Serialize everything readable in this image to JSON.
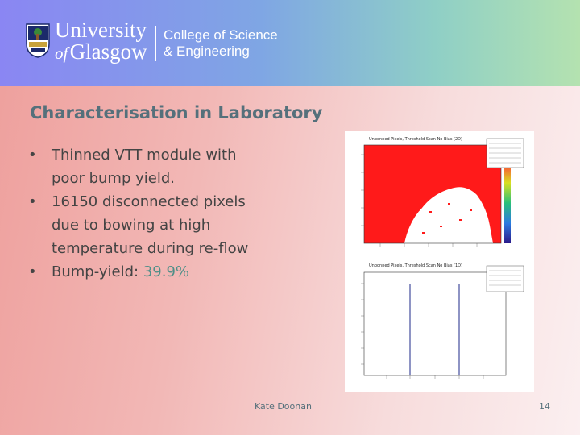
{
  "header": {
    "logo_line1": "University",
    "logo_of": "of",
    "logo_line2": "Glasgow",
    "college_line1": "College of Science",
    "college_line2": "& Engineering",
    "logo_icon": "university-crest-icon"
  },
  "slide": {
    "title": "Characterisation in Laboratory",
    "bullet_char": "•",
    "bullets": [
      "Thinned VTT module with poor bump yield.",
      "16150 disconnected pixels due to bowing at high temperature during re-flow"
    ],
    "bullet3_prefix": "Bump-yield: ",
    "bullet3_value": "39.9%"
  },
  "figure": {
    "top_title": "Unbonned Pixels, Threshold Scan No Bias (2D)",
    "bottom_title": "Unbonned Pixels, Threshold Scan No Bias (1D)",
    "colors": {
      "red": "#ff1a1a",
      "accent": "#4f8f88"
    }
  },
  "footer": {
    "author": "Kate Doonan",
    "page": "14"
  }
}
